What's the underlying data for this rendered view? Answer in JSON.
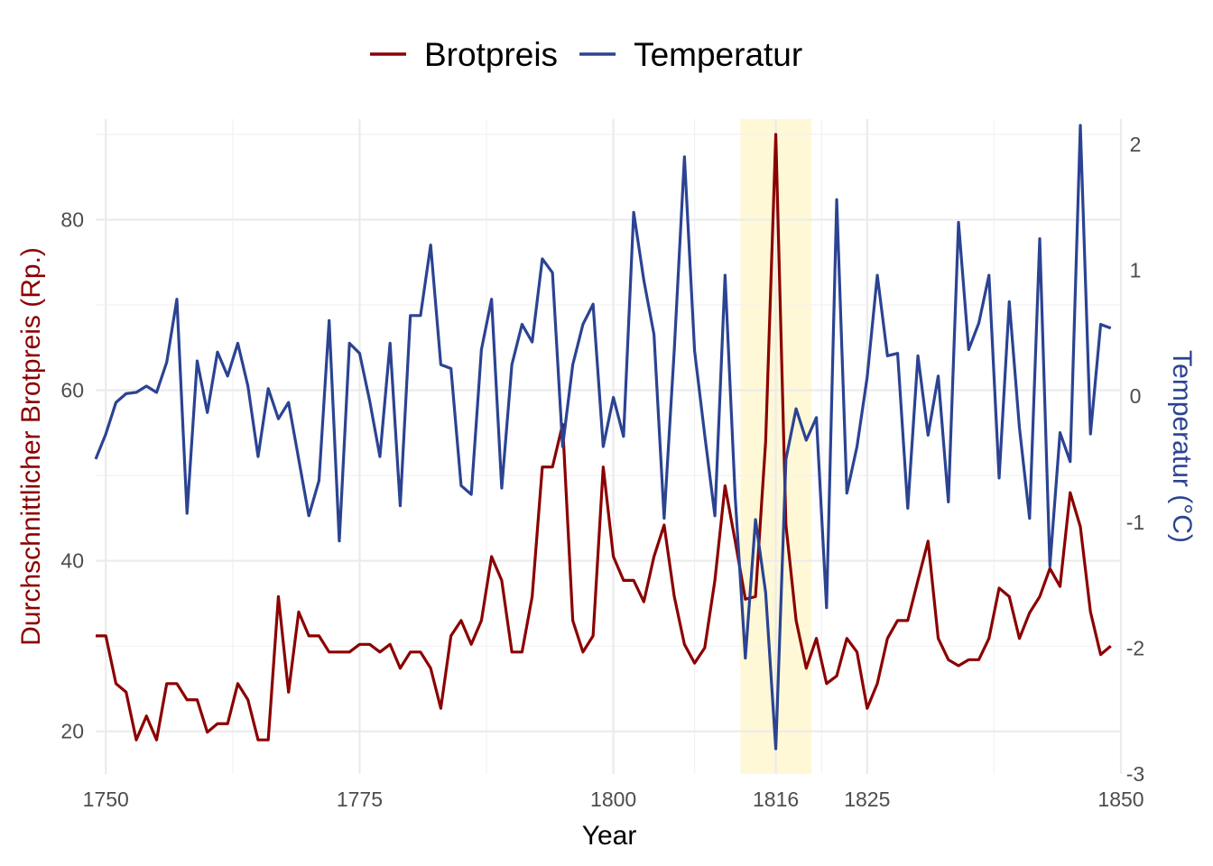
{
  "chart_data": {
    "type": "line",
    "xlabel": "Year",
    "ylabel_left": "Durchschnittlicher Brotpreis (Rp.)",
    "ylabel_right": "Temperatur (°C)",
    "xlim": [
      1749,
      1850
    ],
    "x_ticks": [
      "1750",
      "1775",
      "1800",
      "1816",
      "1825",
      "1850"
    ],
    "ylim_left": [
      15,
      91.8
    ],
    "y_ticks_left": [
      "20",
      "40",
      "60",
      "80"
    ],
    "ylim_right": [
      -3,
      2.2
    ],
    "y_ticks_right": [
      "-3",
      "-2",
      "-1",
      "0",
      "1",
      "2"
    ],
    "highlight": {
      "x_start": 1812.5,
      "x_end": 1819.5,
      "color": "#fff8d6"
    },
    "grid": true,
    "legend_position": "top",
    "series": [
      {
        "name": "Brotpreis",
        "axis": "left",
        "color": "#8b0000",
        "x": [
          1749,
          1750,
          1751,
          1752,
          1753,
          1754,
          1755,
          1756,
          1757,
          1758,
          1759,
          1760,
          1761,
          1762,
          1763,
          1764,
          1765,
          1766,
          1767,
          1768,
          1769,
          1770,
          1771,
          1772,
          1773,
          1774,
          1775,
          1776,
          1777,
          1778,
          1779,
          1780,
          1781,
          1782,
          1783,
          1784,
          1785,
          1786,
          1787,
          1788,
          1789,
          1790,
          1791,
          1792,
          1793,
          1794,
          1795,
          1796,
          1797,
          1798,
          1799,
          1800,
          1801,
          1802,
          1803,
          1804,
          1805,
          1806,
          1807,
          1808,
          1809,
          1810,
          1811,
          1812,
          1813,
          1814,
          1815,
          1816,
          1817,
          1818,
          1819,
          1820,
          1821,
          1822,
          1823,
          1824,
          1825,
          1826,
          1827,
          1828,
          1829,
          1830,
          1831,
          1832,
          1833,
          1834,
          1835,
          1836,
          1837,
          1838,
          1839,
          1840,
          1841,
          1842,
          1843,
          1844,
          1845,
          1846,
          1847,
          1848,
          1849
        ],
        "values": [
          31.2,
          31.2,
          25.6,
          24.6,
          19,
          21.8,
          19,
          25.6,
          25.6,
          23.7,
          23.7,
          19.9,
          20.9,
          20.9,
          25.6,
          23.7,
          19,
          19,
          35.8,
          24.6,
          34,
          31.2,
          31.2,
          29.3,
          29.3,
          29.3,
          30.2,
          30.2,
          29.3,
          30.2,
          27.4,
          29.3,
          29.3,
          27.4,
          22.7,
          31.2,
          33,
          30.2,
          33,
          40.5,
          37.7,
          29.3,
          29.3,
          35.8,
          51,
          51,
          56,
          33,
          29.3,
          31.2,
          51,
          40.5,
          37.7,
          37.7,
          35.2,
          40.5,
          44.2,
          35.8,
          30.2,
          28,
          29.8,
          37.7,
          48.8,
          42.3,
          35.5,
          35.8,
          54,
          90,
          44.2,
          33,
          27.4,
          30.9,
          25.6,
          26.5,
          30.9,
          29.3,
          22.7,
          25.6,
          30.9,
          33,
          33,
          37.7,
          42.3,
          30.9,
          28.4,
          27.7,
          28.4,
          28.4,
          30.9,
          36.8,
          35.8,
          30.9,
          33.9,
          35.8,
          39.1,
          37,
          48,
          44,
          34,
          29,
          30
        ]
      },
      {
        "name": "Temperatur",
        "axis": "right",
        "color": "#2b4392",
        "x": [
          1749,
          1750,
          1751,
          1752,
          1753,
          1754,
          1755,
          1756,
          1757,
          1758,
          1759,
          1760,
          1761,
          1762,
          1763,
          1764,
          1765,
          1766,
          1767,
          1768,
          1769,
          1770,
          1771,
          1772,
          1773,
          1774,
          1775,
          1776,
          1777,
          1778,
          1779,
          1780,
          1781,
          1782,
          1783,
          1784,
          1785,
          1786,
          1787,
          1788,
          1789,
          1790,
          1791,
          1792,
          1793,
          1794,
          1795,
          1796,
          1797,
          1798,
          1799,
          1800,
          1801,
          1802,
          1803,
          1804,
          1805,
          1806,
          1807,
          1808,
          1809,
          1810,
          1811,
          1812,
          1813,
          1814,
          1815,
          1816,
          1817,
          1818,
          1819,
          1820,
          1821,
          1822,
          1823,
          1824,
          1825,
          1826,
          1827,
          1828,
          1829,
          1830,
          1831,
          1832,
          1833,
          1834,
          1835,
          1836,
          1837,
          1838,
          1839,
          1840,
          1841,
          1842,
          1843,
          1844,
          1845,
          1846,
          1847,
          1848,
          1849
        ],
        "values": [
          -0.5,
          -0.3,
          -0.05,
          0.02,
          0.03,
          0.08,
          0.03,
          0.27,
          0.77,
          -0.93,
          0.28,
          -0.13,
          0.35,
          0.16,
          0.42,
          0.08,
          -0.48,
          0.06,
          -0.18,
          -0.05,
          -0.5,
          -0.95,
          -0.67,
          0.6,
          -1.15,
          0.42,
          0.34,
          -0.04,
          -0.48,
          0.42,
          -0.87,
          0.64,
          0.64,
          1.2,
          0.25,
          0.22,
          -0.71,
          -0.78,
          0.37,
          0.77,
          -0.73,
          0.25,
          0.57,
          0.43,
          1.09,
          0.98,
          -0.4,
          0.25,
          0.57,
          0.73,
          -0.4,
          -0.01,
          -0.32,
          1.46,
          0.92,
          0.49,
          -0.97,
          0.37,
          1.9,
          0.36,
          -0.31,
          -0.95,
          0.96,
          -0.8,
          -2.08,
          -0.98,
          -1.56,
          -2.8,
          -0.5,
          -0.1,
          -0.35,
          -0.17,
          -1.68,
          1.56,
          -0.77,
          -0.4,
          0.15,
          0.96,
          0.32,
          0.34,
          -0.89,
          0.32,
          -0.31,
          0.16,
          -0.84,
          1.38,
          0.37,
          0.58,
          0.96,
          -0.65,
          0.75,
          -0.25,
          -0.97,
          1.25,
          -1.35,
          -0.29,
          -0.52,
          2.15,
          -0.3,
          0.57,
          0.54
        ]
      }
    ]
  }
}
